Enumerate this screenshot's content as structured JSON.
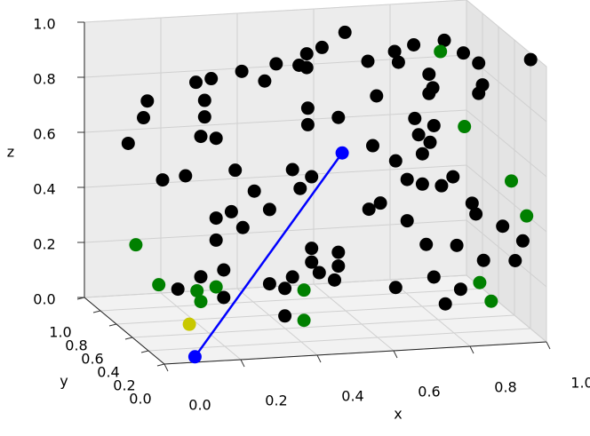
{
  "chart_data": {
    "type": "scatter3d",
    "xlabel": "x",
    "ylabel": "y",
    "zlabel": "z",
    "xlim": [
      0,
      1
    ],
    "ylim": [
      0,
      1
    ],
    "zlim": [
      0,
      1
    ],
    "xticks": [
      {
        "value": 0,
        "label": "0.0"
      },
      0.2,
      0.4,
      0.6,
      0.8,
      {
        "value": 1,
        "label": "1.0"
      }
    ],
    "yticks": [
      {
        "value": 0,
        "label": "0.0"
      },
      0.2,
      0.4,
      0.6,
      0.8,
      {
        "value": 1,
        "label": "1.0"
      }
    ],
    "zticks": [
      {
        "value": 0,
        "label": "0.0"
      },
      0.2,
      0.4,
      0.6,
      0.8,
      {
        "value": 1,
        "label": "1.0"
      }
    ],
    "grid": true,
    "series": [
      {
        "color": "#000000",
        "x": [
          0.64,
          0.58,
          0.54,
          0.54,
          0.46,
          0.52,
          0.43,
          0.29,
          0.25,
          0.37,
          0.7,
          0.77,
          0.78,
          0.82,
          0.9,
          0.95,
          0.99,
          0.99,
          0.86,
          0.87,
          0.86,
          1.0,
          0.99,
          0.66,
          0.48,
          0.56,
          0.48,
          0.21,
          0.06,
          0.05,
          0.21,
          0.2,
          0.24,
          0.01,
          0.76,
          0.77,
          0.81,
          0.8,
          0.78,
          0.65,
          0.71,
          0.74,
          0.78,
          0.83,
          0.86,
          0.91,
          0.92,
          0.99,
          0.98,
          0.96,
          0.94,
          0.87,
          0.79,
          0.74,
          0.67,
          0.64,
          0.49,
          0.44,
          0.46,
          0.38,
          0.34,
          0.29,
          0.16,
          0.1,
          0.28,
          0.31,
          0.24,
          0.24,
          0.49,
          0.49,
          0.56,
          0.56,
          0.51,
          0.44,
          0.42,
          0.55,
          0.38,
          0.26,
          0.2,
          0.14,
          0.71,
          0.81,
          0.88,
          0.84,
          0.42,
          0.26
        ],
        "y": [
          0.8,
          0.8,
          0.8,
          0.8,
          0.8,
          0.8,
          0.8,
          0.8,
          0.8,
          0.8,
          0.8,
          0.8,
          0.8,
          0.8,
          0.8,
          0.8,
          0.8,
          0.15,
          0.8,
          0.8,
          0.8,
          0.8,
          0.8,
          0.5,
          0.5,
          0.5,
          0.5,
          0.5,
          0.5,
          0.5,
          0.5,
          0.5,
          0.5,
          0.5,
          0.5,
          0.5,
          0.5,
          0.5,
          0.5,
          0.5,
          0.5,
          0.5,
          0.5,
          0.5,
          0.5,
          0.5,
          0.5,
          0.5,
          0.2,
          0.2,
          0.5,
          0.5,
          0.5,
          0.5,
          0.5,
          0.5,
          0.5,
          0.5,
          0.5,
          0.5,
          0.5,
          0.5,
          0.5,
          0.5,
          0.5,
          0.5,
          0.5,
          0.5,
          0.5,
          0.5,
          0.5,
          0.5,
          0.5,
          0.5,
          0.5,
          0.5,
          0.5,
          0.5,
          0.5,
          0.5,
          0.5,
          0.5,
          0.5,
          0.5,
          0.5,
          0.5
        ],
        "z": [
          0.96,
          0.91,
          0.89,
          0.84,
          0.86,
          0.85,
          0.8,
          0.82,
          0.81,
          0.84,
          0.85,
          0.88,
          0.84,
          0.9,
          0.91,
          0.86,
          0.82,
          0.99,
          0.79,
          0.74,
          0.72,
          0.74,
          0.71,
          0.8,
          0.77,
          0.73,
          0.71,
          0.82,
          0.83,
          0.77,
          0.76,
          0.69,
          0.68,
          0.68,
          0.71,
          0.65,
          0.68,
          0.62,
          0.58,
          0.62,
          0.56,
          0.49,
          0.47,
          0.46,
          0.49,
          0.39,
          0.35,
          0.3,
          0.32,
          0.25,
          0.18,
          0.24,
          0.25,
          0.34,
          0.41,
          0.39,
          0.52,
          0.55,
          0.48,
          0.41,
          0.48,
          0.56,
          0.55,
          0.54,
          0.41,
          0.35,
          0.39,
          0.31,
          0.26,
          0.21,
          0.24,
          0.19,
          0.17,
          0.16,
          0.12,
          0.14,
          0.14,
          0.2,
          0.18,
          0.14,
          0.1,
          0.13,
          0.08,
          0.03,
          0.02,
          0.1
        ]
      },
      {
        "color": "#008000",
        "x": [
          0.89,
          0.89,
          0.95,
          0.99,
          0.03,
          0.09,
          0.19,
          0.24,
          0.2,
          0.47,
          0.47,
          0.93,
          0.96
        ],
        "y": [
          0.8,
          0.5,
          0.2,
          0.2,
          0.5,
          0.5,
          0.5,
          0.5,
          0.5,
          0.5,
          0.5,
          0.5,
          0.5
        ],
        "z": [
          0.87,
          0.67,
          0.54,
          0.41,
          0.31,
          0.16,
          0.13,
          0.14,
          0.09,
          0.11,
          0.0,
          0.1,
          0.03
        ]
      },
      {
        "color": "#c8c800",
        "x": [
          0.17
        ],
        "y": [
          0.5
        ],
        "z": [
          0.01
        ]
      },
      {
        "color": "#0000ff",
        "line": true,
        "x": [
          0.08,
          0.57
        ],
        "y": [
          0,
          0.5
        ],
        "z": [
          0.02,
          0.6
        ]
      }
    ]
  }
}
